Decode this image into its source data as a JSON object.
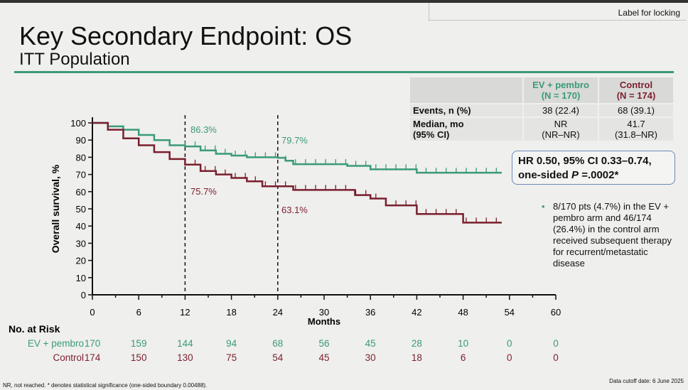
{
  "header": {
    "lock_label": "Label for locking",
    "title": "Key Secondary Endpoint: OS",
    "subtitle": "ITT Population"
  },
  "table": {
    "col1": "EV + pembro",
    "col1_n": "(N = 170)",
    "col2": "Control",
    "col2_n": "(N = 174)",
    "rows": [
      {
        "label": "Events, n (%)",
        "ev": "38 (22.4)",
        "ctl": "68 (39.1)"
      },
      {
        "label": "Median, mo",
        "label2": "(95% CI)",
        "ev": "NR",
        "ev2": "(NR–NR)",
        "ctl": "41.7",
        "ctl2": "(31.8–NR)"
      }
    ]
  },
  "hr_box": {
    "line1": "HR 0.50, 95% CI 0.33–0.74,",
    "line2a": "one-sided ",
    "line2b": "P",
    "line2c": " =.0002*"
  },
  "note": {
    "bullet": "•",
    "text": "8/170 pts (4.7%) in the EV + pembro arm and 46/174 (26.4%) in the control arm received subsequent therapy for recurrent/metastatic disease"
  },
  "footer": {
    "left": "NR, not reached. * denotes statistical significance (one-sided boundary 0.00488).",
    "right": "Data cutoff date: 6 June 2025"
  },
  "colors": {
    "ev": "#3a9a7a",
    "control": "#7a1f2e"
  },
  "chart_data": {
    "type": "line",
    "xlabel": "Months",
    "ylabel": "Overall survival, %",
    "xlim": [
      0,
      60
    ],
    "ylim": [
      0,
      100
    ],
    "xticks": [
      0,
      6,
      12,
      18,
      24,
      30,
      36,
      42,
      48,
      54,
      60
    ],
    "yticks": [
      0,
      10,
      20,
      30,
      40,
      50,
      60,
      70,
      80,
      90,
      100
    ],
    "series": [
      {
        "name": "EV + pembro",
        "x": [
          0,
          2,
          4,
          6,
          8,
          10,
          12,
          14,
          16,
          18,
          20,
          24,
          25,
          26,
          33,
          36,
          42,
          53
        ],
        "y": [
          100,
          98,
          96,
          93,
          90,
          87,
          86.3,
          84,
          82,
          81,
          80,
          79.7,
          78,
          76,
          75,
          73,
          71,
          71
        ]
      },
      {
        "name": "Control",
        "x": [
          0,
          2,
          4,
          6,
          8,
          10,
          12,
          14,
          16,
          18,
          20,
          22,
          24,
          26,
          30,
          34,
          36,
          38,
          42,
          48,
          53
        ],
        "y": [
          100,
          96,
          91,
          87,
          83,
          79,
          75.7,
          72,
          70,
          68,
          66,
          63.1,
          63.1,
          61,
          61,
          58,
          56,
          52,
          47,
          42,
          42
        ]
      }
    ],
    "annotations": [
      {
        "x": 12,
        "text": "86.3%",
        "series": "EV + pembro"
      },
      {
        "x": 24,
        "text": "79.7%",
        "series": "EV + pembro"
      },
      {
        "x": 12,
        "text": "75.7%",
        "series": "Control"
      },
      {
        "x": 24,
        "text": "63.1%",
        "series": "Control"
      }
    ],
    "risk_table": {
      "title": "No. at Risk",
      "rows": [
        {
          "name": "EV + pembro",
          "values": [
            170,
            159,
            144,
            94,
            68,
            56,
            45,
            28,
            10,
            0,
            0
          ]
        },
        {
          "name": "Control",
          "values": [
            174,
            150,
            130,
            75,
            54,
            45,
            30,
            18,
            6,
            0,
            0
          ]
        }
      ]
    }
  }
}
